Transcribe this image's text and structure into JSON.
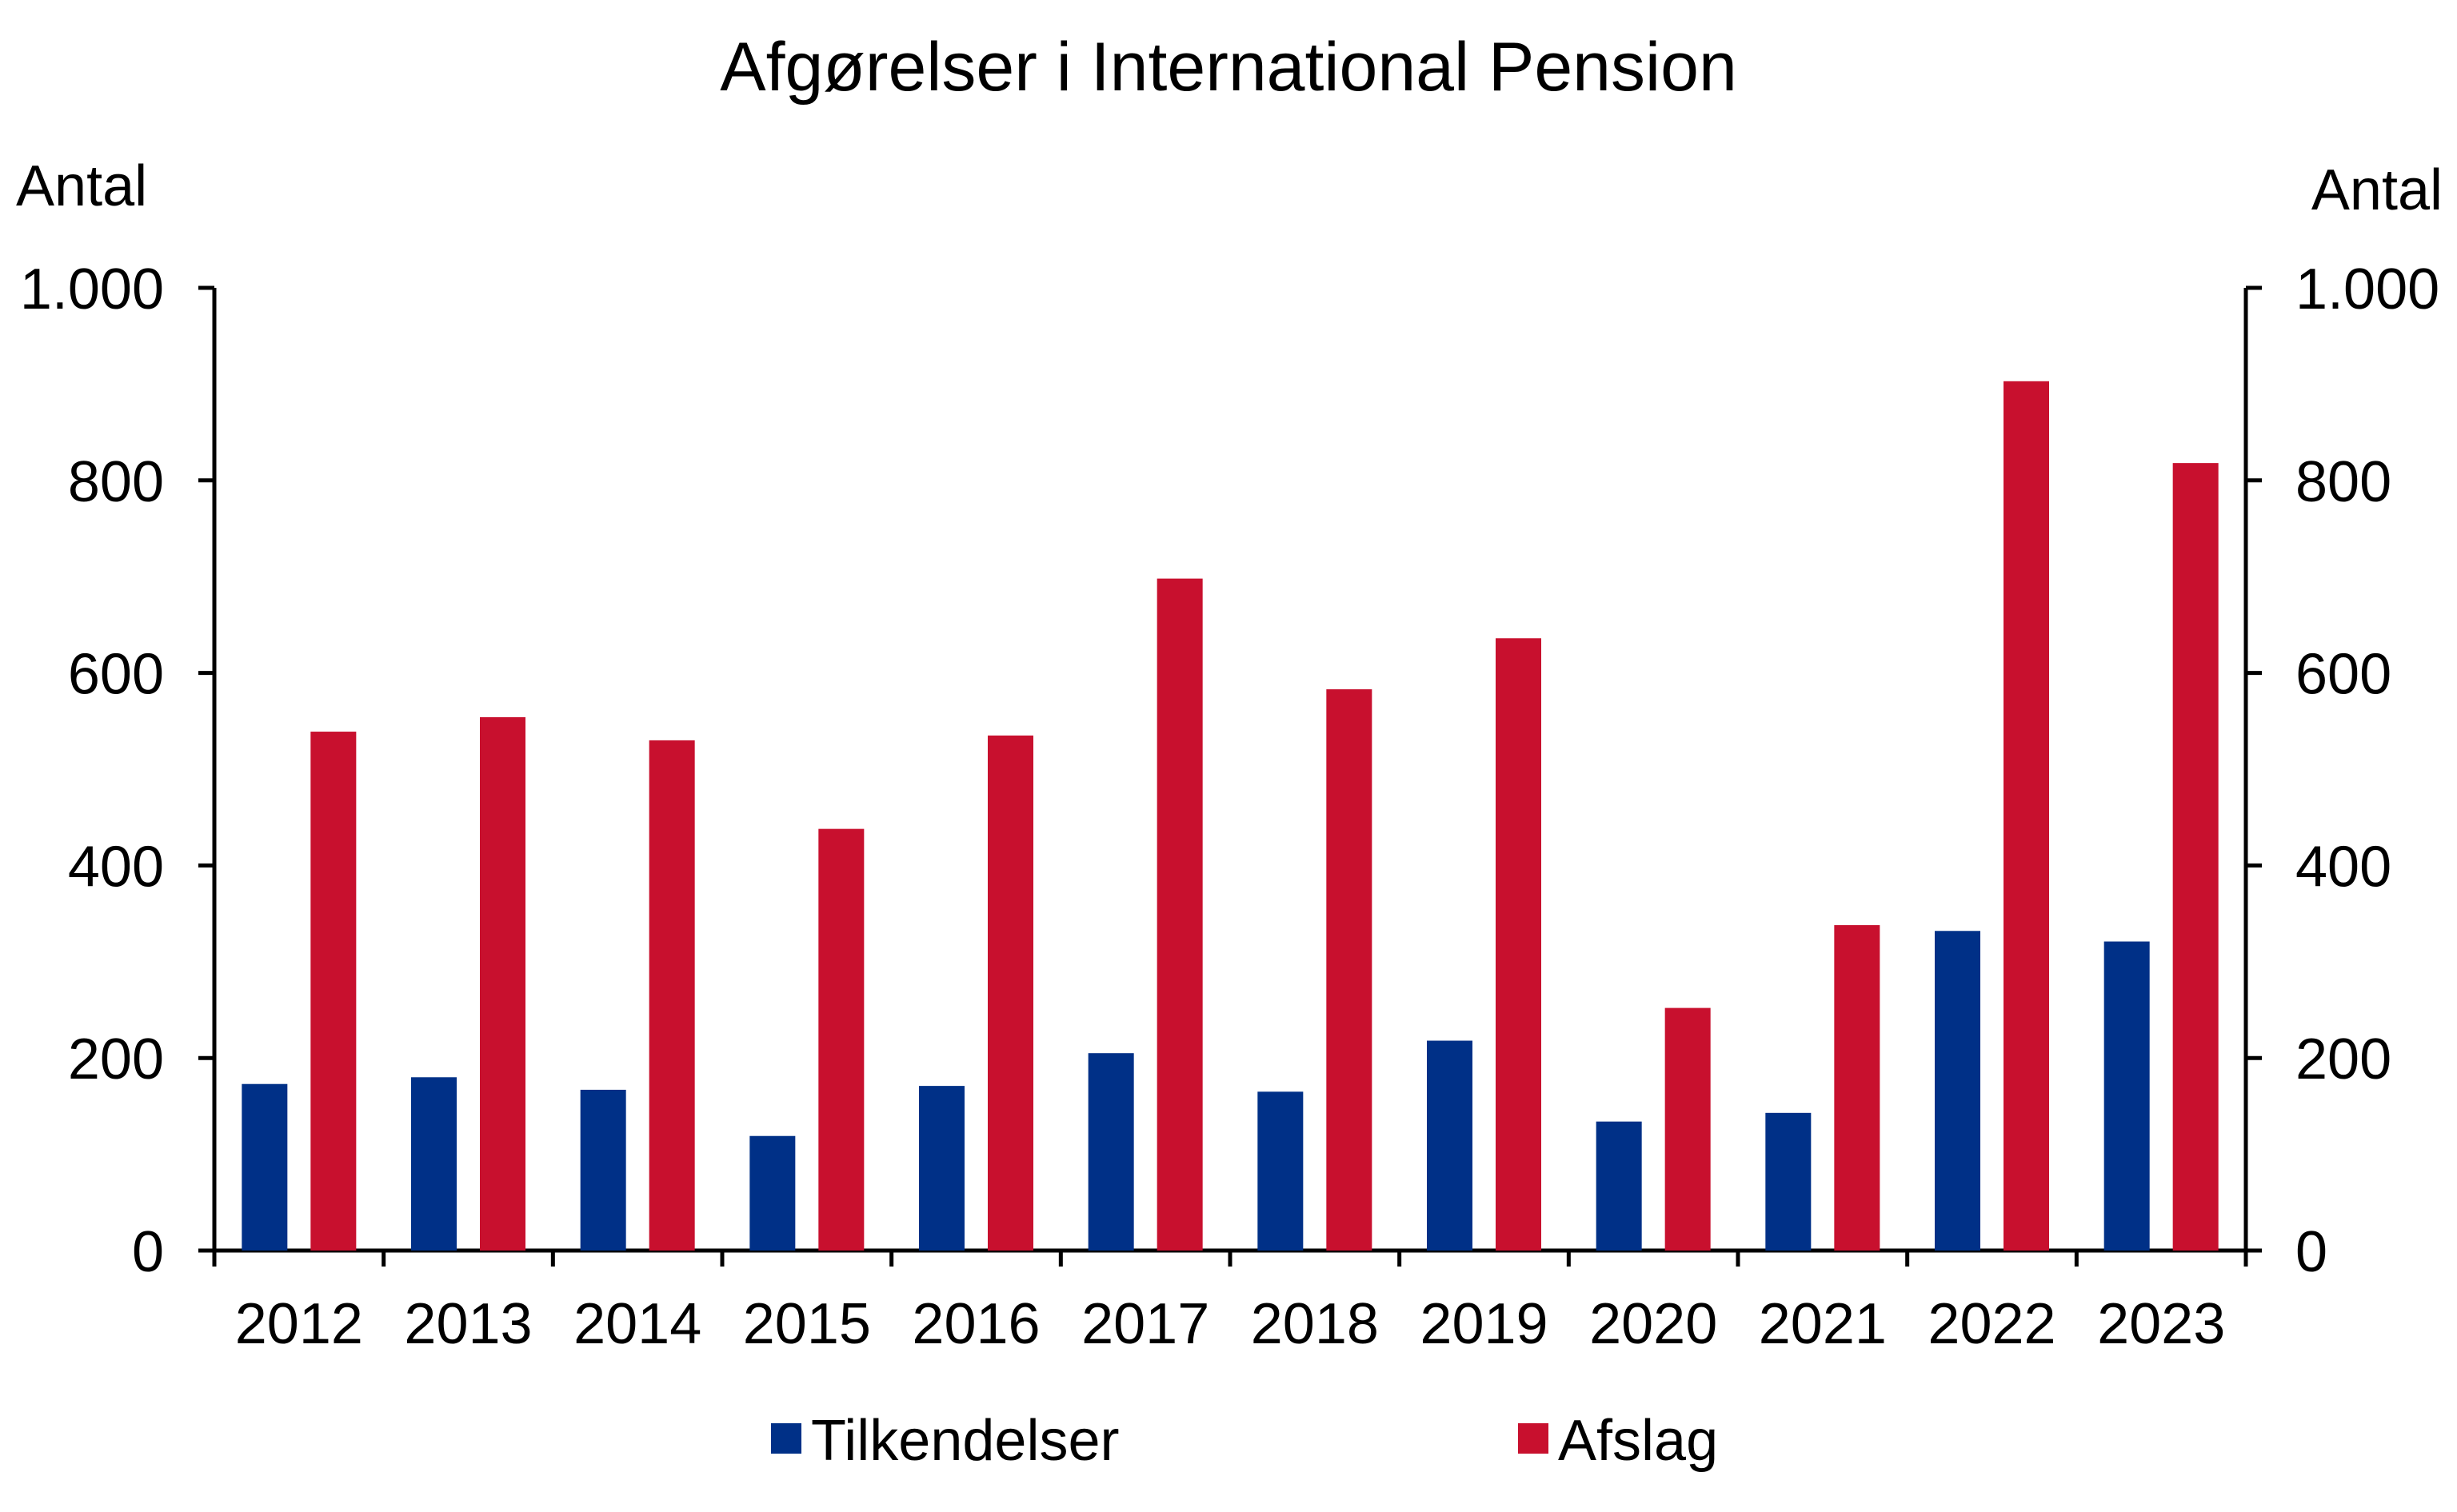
{
  "chart_data": {
    "type": "bar",
    "title": "Afgørelser i International Pension",
    "ylabel_left": "Antal",
    "ylabel_right": "Antal",
    "xlabel": "",
    "categories": [
      "2012",
      "2013",
      "2014",
      "2015",
      "2016",
      "2017",
      "2018",
      "2019",
      "2020",
      "2021",
      "2022",
      "2023"
    ],
    "series": [
      {
        "name": "Tilkendelser",
        "color": "#003087",
        "values": [
          173,
          180,
          167,
          119,
          171,
          205,
          165,
          218,
          134,
          143,
          332,
          321
        ]
      },
      {
        "name": "Afslag",
        "color": "#C8102E",
        "values": [
          539,
          554,
          530,
          438,
          535,
          698,
          583,
          636,
          252,
          338,
          903,
          818
        ]
      }
    ],
    "ylim": [
      0,
      1000
    ],
    "yticks": [
      0,
      200,
      400,
      600,
      800,
      1000
    ],
    "ytick_labels": [
      "0",
      "200",
      "400",
      "600",
      "800",
      "1.000"
    ],
    "grid": false,
    "legend_position": "bottom"
  }
}
